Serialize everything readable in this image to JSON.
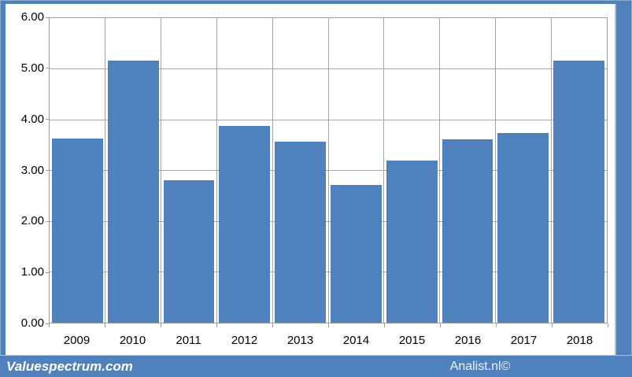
{
  "watermarks": {
    "left": "Valuespectrum.com",
    "right": "Analist.nl©"
  },
  "colors": {
    "accent": "#4f81bd",
    "bar": "#4f81bd",
    "gridline": "#a6a6a6",
    "plot_border": "#9b9b9b",
    "frame_light_edge": "#a9c2e0"
  },
  "chart_data": {
    "type": "bar",
    "categories": [
      "2009",
      "2010",
      "2011",
      "2012",
      "2013",
      "2014",
      "2015",
      "2016",
      "2017",
      "2018"
    ],
    "values": [
      3.63,
      5.17,
      2.8,
      3.88,
      3.56,
      2.71,
      3.2,
      3.62,
      3.74,
      5.16
    ],
    "title": "",
    "xlabel": "",
    "ylabel": "",
    "ylim": [
      0,
      6
    ],
    "ytick_step": 1,
    "ytick_labels": [
      "0.00",
      "1.00",
      "2.00",
      "3.00",
      "4.00",
      "5.00",
      "6.00"
    ],
    "grid": true,
    "legend_position": "none"
  }
}
